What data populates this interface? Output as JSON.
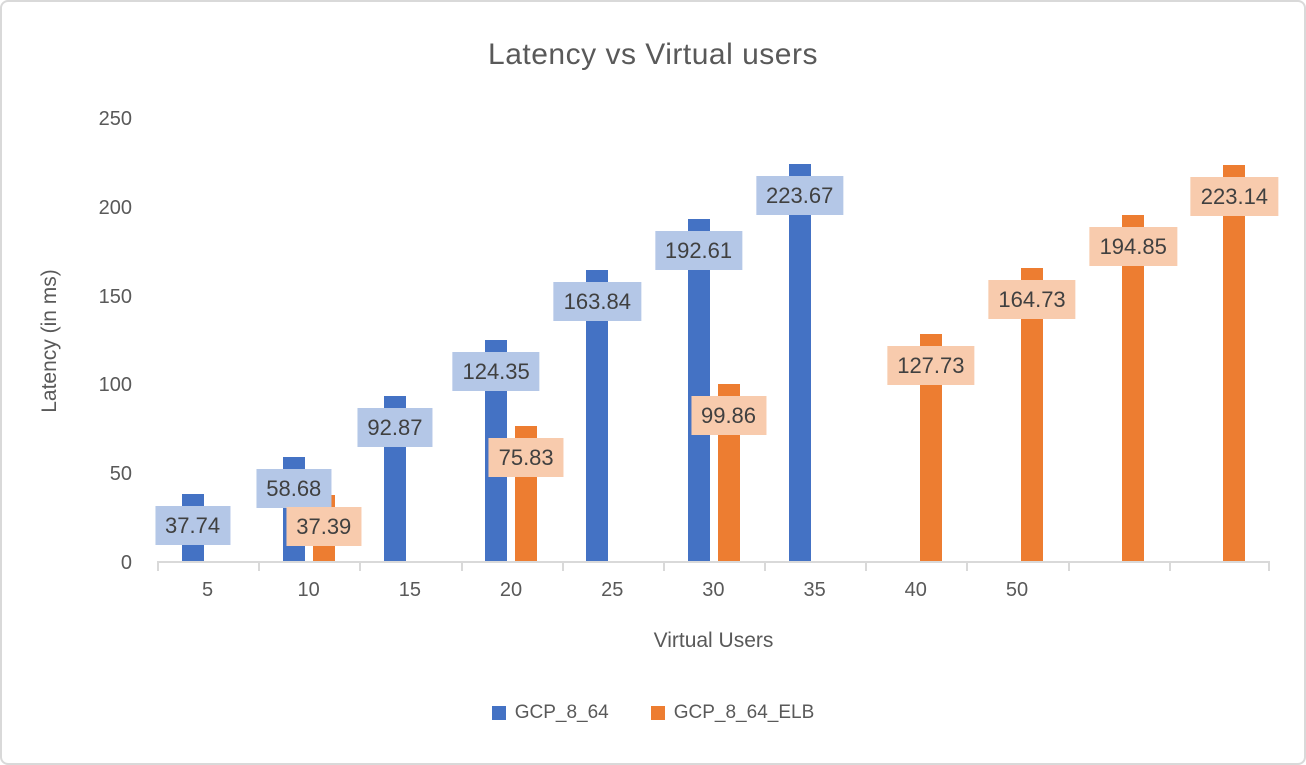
{
  "window": {
    "background": "#ffffff",
    "border_color": "#d9d9d9"
  },
  "chart_data": {
    "type": "bar",
    "title": "Latency vs Virtual users",
    "xlabel": "Virtual Users",
    "ylabel": "Latency (in ms)",
    "ylim": [
      0,
      250
    ],
    "yticks": [
      0,
      50,
      100,
      150,
      200,
      250
    ],
    "categories": [
      "5",
      "10",
      "15",
      "20",
      "25",
      "30",
      "35",
      "40",
      "50",
      "",
      ""
    ],
    "series": [
      {
        "name": "GCP_8_64",
        "color": "#4472C4",
        "label_bg": "#B4C7E7",
        "values": [
          37.74,
          58.68,
          92.87,
          124.35,
          163.84,
          192.61,
          223.67,
          null,
          null,
          null,
          null
        ]
      },
      {
        "name": "GCP_8_64_ELB",
        "color": "#ED7D31",
        "label_bg": "#F8CBAD",
        "values": [
          null,
          37.39,
          null,
          75.83,
          null,
          99.86,
          null,
          127.73,
          164.73,
          194.85,
          223.14
        ]
      }
    ],
    "legend_position": "bottom",
    "grid": false,
    "data_labels": true,
    "text_color": "#595959",
    "label_text_color": "#404040",
    "axis_color": "#d9d9d9"
  }
}
